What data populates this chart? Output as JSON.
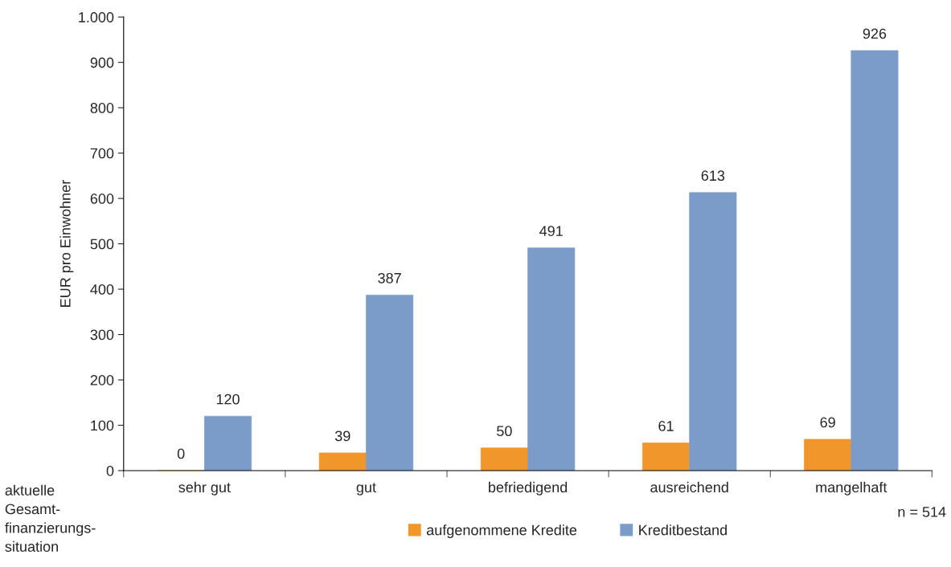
{
  "chart_data": {
    "type": "bar",
    "ylabel": "EUR pro Einwohner",
    "xlabel": "aktuelle\nGesamt-\nfinanzierungs-\nsituation",
    "categories": [
      "sehr gut",
      "gut",
      "befriedigend",
      "ausreichend",
      "mangelhaft"
    ],
    "series": [
      {
        "name": "aufgenommene Kredite",
        "color": "#f0962a",
        "values": [
          0,
          39,
          50,
          61,
          69
        ]
      },
      {
        "name": "Kreditbestand",
        "color": "#7b9cc9",
        "values": [
          120,
          387,
          491,
          613,
          926
        ]
      }
    ],
    "ylim": [
      0,
      1000
    ],
    "yticks": [
      0,
      100,
      200,
      300,
      400,
      500,
      600,
      700,
      800,
      900,
      {
        "value": 1000,
        "label": "1.000"
      }
    ],
    "data_labels": true,
    "legend": "bottom",
    "grid": false,
    "annotations": [
      "n = 514"
    ]
  }
}
